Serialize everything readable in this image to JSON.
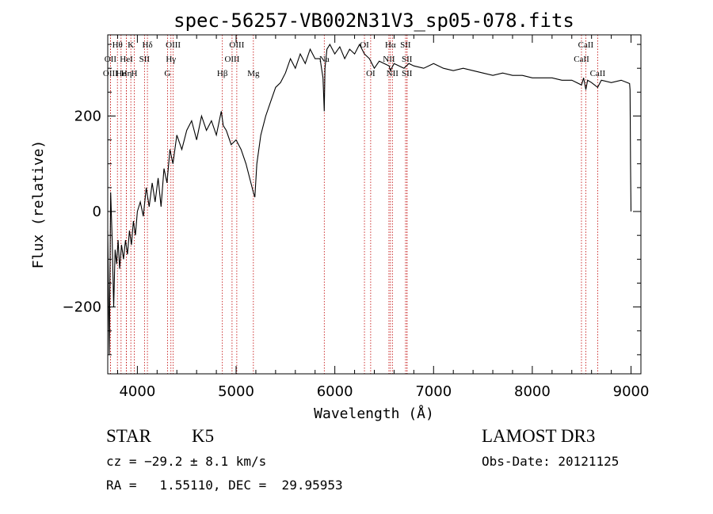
{
  "chart_data": {
    "type": "line",
    "title": "spec-56257-VB002N31V3_sp05-078.fits",
    "xlabel": "Wavelength (Å)",
    "ylabel": "Flux (relative)",
    "xlim": [
      3700,
      9100
    ],
    "ylim": [
      -340,
      370
    ],
    "x_ticks": [
      4000,
      5000,
      6000,
      7000,
      8000,
      9000
    ],
    "x_tick_labels": [
      "4000",
      "5000",
      "6000",
      "7000",
      "8000",
      "9000"
    ],
    "y_ticks": [
      -200,
      0,
      200
    ],
    "y_tick_labels": [
      "−200",
      "0",
      "200"
    ],
    "series": [
      {
        "name": "flux",
        "color": "#000000",
        "x": [
          3700,
          3715,
          3730,
          3745,
          3760,
          3775,
          3790,
          3805,
          3820,
          3840,
          3860,
          3880,
          3900,
          3920,
          3940,
          3960,
          3980,
          4000,
          4030,
          4060,
          4090,
          4120,
          4150,
          4180,
          4210,
          4240,
          4270,
          4300,
          4330,
          4360,
          4400,
          4450,
          4500,
          4550,
          4600,
          4650,
          4700,
          4750,
          4800,
          4850,
          4870,
          4900,
          4950,
          5000,
          5050,
          5100,
          5150,
          5175,
          5190,
          5210,
          5250,
          5300,
          5350,
          5400,
          5450,
          5500,
          5550,
          5600,
          5650,
          5700,
          5750,
          5800,
          5850,
          5880,
          5893,
          5900,
          5920,
          5950,
          6000,
          6050,
          6100,
          6150,
          6200,
          6250,
          6300,
          6350,
          6400,
          6450,
          6500,
          6550,
          6563,
          6600,
          6650,
          6700,
          6750,
          6800,
          6900,
          7000,
          7100,
          7200,
          7300,
          7400,
          7500,
          7600,
          7700,
          7800,
          7900,
          8000,
          8100,
          8200,
          8300,
          8400,
          8498,
          8520,
          8542,
          8560,
          8600,
          8662,
          8700,
          8800,
          8900,
          8960,
          8985,
          8990,
          8995,
          9000
        ],
        "values": [
          -40,
          -300,
          40,
          -60,
          -200,
          -80,
          -110,
          -60,
          -120,
          -70,
          -100,
          -60,
          -90,
          -40,
          -70,
          -20,
          -50,
          0,
          20,
          -10,
          50,
          10,
          60,
          20,
          70,
          10,
          90,
          60,
          130,
          100,
          160,
          130,
          170,
          190,
          150,
          200,
          170,
          190,
          160,
          210,
          180,
          170,
          140,
          150,
          130,
          100,
          60,
          40,
          30,
          100,
          160,
          200,
          230,
          260,
          270,
          290,
          320,
          300,
          330,
          310,
          340,
          320,
          320,
          280,
          210,
          300,
          340,
          350,
          330,
          345,
          320,
          340,
          330,
          350,
          330,
          320,
          300,
          315,
          310,
          305,
          295,
          310,
          305,
          300,
          310,
          305,
          300,
          310,
          300,
          295,
          300,
          295,
          290,
          285,
          290,
          285,
          285,
          280,
          280,
          280,
          275,
          275,
          265,
          280,
          255,
          275,
          270,
          260,
          275,
          270,
          275,
          270,
          268,
          255,
          100,
          0
        ]
      }
    ],
    "lines": [
      {
        "label": "Hθ",
        "x": 3798,
        "row": 0
      },
      {
        "label": "OII",
        "x": 3727,
        "row": 1
      },
      {
        "label": "OIII",
        "x": 3727,
        "row": 2
      },
      {
        "label": "He",
        "x": 3835,
        "row": 2
      },
      {
        "label": "K",
        "x": 3934,
        "row": 0
      },
      {
        "label": "HeI",
        "x": 3889,
        "row": 1
      },
      {
        "label": "Hη",
        "x": 3889,
        "row": 2
      },
      {
        "label": "SII",
        "x": 4072,
        "row": 1
      },
      {
        "label": "H",
        "x": 3969,
        "row": 2
      },
      {
        "label": "Hδ",
        "x": 4102,
        "row": 0
      },
      {
        "label": "OIII",
        "x": 4363,
        "row": 0
      },
      {
        "label": "Hγ",
        "x": 4340,
        "row": 1
      },
      {
        "label": "G",
        "x": 4305,
        "row": 2
      },
      {
        "label": "Hβ",
        "x": 4861,
        "row": 2
      },
      {
        "label": "OIII",
        "x": 5007,
        "row": 0
      },
      {
        "label": "OIII",
        "x": 4959,
        "row": 1
      },
      {
        "label": "Mg",
        "x": 5175,
        "row": 2
      },
      {
        "label": "Na",
        "x": 5893,
        "row": 1
      },
      {
        "label": "OI",
        "x": 6300,
        "row": 0
      },
      {
        "label": "OI",
        "x": 6363,
        "row": 2
      },
      {
        "label": "Hα",
        "x": 6563,
        "row": 0
      },
      {
        "label": "NII",
        "x": 6548,
        "row": 1
      },
      {
        "label": "NII",
        "x": 6583,
        "row": 2
      },
      {
        "label": "SII",
        "x": 6716,
        "row": 0
      },
      {
        "label": "SII",
        "x": 6731,
        "row": 1
      },
      {
        "label": "SII",
        "x": 6731,
        "row": 2
      },
      {
        "label": "CaII",
        "x": 8542,
        "row": 0
      },
      {
        "label": "CaII",
        "x": 8498,
        "row": 1
      },
      {
        "label": "CaII",
        "x": 8662,
        "row": 2
      }
    ],
    "line_color": "#c00000"
  },
  "info": {
    "object_class": "STAR",
    "subclass": "K5",
    "survey": "LAMOST DR3",
    "cz": "cz = −29.2 ± 8.1 km/s",
    "obs_date": "Obs-Date: 20121125",
    "coords": "RA =   1.55110, DEC =  29.95953"
  }
}
